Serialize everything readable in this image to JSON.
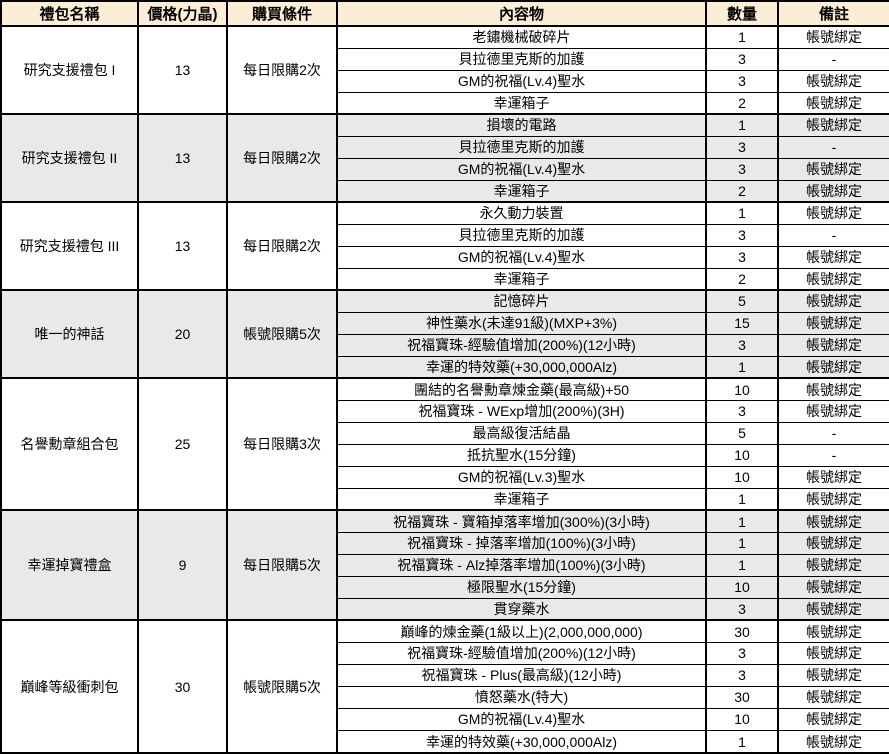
{
  "colors": {
    "header_bg": "#FBEED4",
    "shaded_row_bg": "#E9E9E9",
    "border": "#000000",
    "text": "#000000"
  },
  "table": {
    "columns": [
      "禮包名稱",
      "價格(力晶)",
      "購買條件",
      "內容物",
      "數量",
      "備註"
    ],
    "packages": [
      {
        "name": "研究支援禮包 I",
        "price": "13",
        "condition": "每日限購2次",
        "shaded": false,
        "items": [
          {
            "content": "老鏽機械破碎片",
            "qty": "1",
            "note": "帳號綁定"
          },
          {
            "content": "貝拉德里克斯的加護",
            "qty": "3",
            "note": "-"
          },
          {
            "content": "GM的祝福(Lv.4)聖水",
            "qty": "3",
            "note": "帳號綁定"
          },
          {
            "content": "幸運箱子",
            "qty": "2",
            "note": "帳號綁定"
          }
        ]
      },
      {
        "name": "研究支援禮包 II",
        "price": "13",
        "condition": "每日限購2次",
        "shaded": true,
        "items": [
          {
            "content": "損壞的電路",
            "qty": "1",
            "note": "帳號綁定"
          },
          {
            "content": "貝拉德里克斯的加護",
            "qty": "3",
            "note": "-"
          },
          {
            "content": "GM的祝福(Lv.4)聖水",
            "qty": "3",
            "note": "帳號綁定"
          },
          {
            "content": "幸運箱子",
            "qty": "2",
            "note": "帳號綁定"
          }
        ]
      },
      {
        "name": "研究支援禮包 III",
        "price": "13",
        "condition": "每日限購2次",
        "shaded": false,
        "items": [
          {
            "content": "永久動力裝置",
            "qty": "1",
            "note": "帳號綁定"
          },
          {
            "content": "貝拉德里克斯的加護",
            "qty": "3",
            "note": "-"
          },
          {
            "content": "GM的祝福(Lv.4)聖水",
            "qty": "3",
            "note": "帳號綁定"
          },
          {
            "content": "幸運箱子",
            "qty": "2",
            "note": "帳號綁定"
          }
        ]
      },
      {
        "name": "唯一的神話",
        "price": "20",
        "condition": "帳號限購5次",
        "shaded": true,
        "items": [
          {
            "content": "記憶碎片",
            "qty": "5",
            "note": "帳號綁定"
          },
          {
            "content": "神性藥水(未達91級)(MXP+3%)",
            "qty": "15",
            "note": "帳號綁定"
          },
          {
            "content": "祝福寶珠-經驗值增加(200%)(12小時)",
            "qty": "3",
            "note": "帳號綁定"
          },
          {
            "content": "幸運的特效藥(+30,000,000Alz)",
            "qty": "1",
            "note": "帳號綁定"
          }
        ]
      },
      {
        "name": "名譽勳章組合包",
        "price": "25",
        "condition": "每日限購3次",
        "shaded": false,
        "items": [
          {
            "content": "團結的名譽勳章煉金藥(最高級)+50",
            "qty": "10",
            "note": "帳號綁定"
          },
          {
            "content": "祝福寶珠 - WExp增加(200%)(3H)",
            "qty": "3",
            "note": "帳號綁定"
          },
          {
            "content": "最高級復活結晶",
            "qty": "5",
            "note": "-"
          },
          {
            "content": "抵抗聖水(15分鐘)",
            "qty": "10",
            "note": "-"
          },
          {
            "content": "GM的祝福(Lv.3)聖水",
            "qty": "10",
            "note": "帳號綁定"
          },
          {
            "content": "幸運箱子",
            "qty": "1",
            "note": "帳號綁定"
          }
        ]
      },
      {
        "name": "幸運掉寶禮盒",
        "price": "9",
        "condition": "每日限購5次",
        "shaded": true,
        "items": [
          {
            "content": "祝福寶珠 - 寶箱掉落率增加(300%)(3小時)",
            "qty": "1",
            "note": "帳號綁定"
          },
          {
            "content": "祝福寶珠 - 掉落率增加(100%)(3小時)",
            "qty": "1",
            "note": "帳號綁定"
          },
          {
            "content": "祝福寶珠 - Alz掉落率增加(100%)(3小時)",
            "qty": "1",
            "note": "帳號綁定"
          },
          {
            "content": "極限聖水(15分鐘)",
            "qty": "10",
            "note": "帳號綁定"
          },
          {
            "content": "貫穿藥水",
            "qty": "3",
            "note": "帳號綁定"
          }
        ]
      },
      {
        "name": "巔峰等級衝刺包",
        "price": "30",
        "condition": "帳號限購5次",
        "shaded": false,
        "items": [
          {
            "content": "巔峰的煉金藥(1級以上)(2,000,000,000)",
            "qty": "30",
            "note": "帳號綁定"
          },
          {
            "content": "祝福寶珠-經驗值增加(200%)(12小時)",
            "qty": "3",
            "note": "帳號綁定"
          },
          {
            "content": "祝福寶珠 - Plus(最高級)(12小時)",
            "qty": "3",
            "note": "帳號綁定"
          },
          {
            "content": "憤怒藥水(特大)",
            "qty": "30",
            "note": "帳號綁定"
          },
          {
            "content": "GM的祝福(Lv.4)聖水",
            "qty": "10",
            "note": "帳號綁定"
          },
          {
            "content": "幸運的特效藥(+30,000,000Alz)",
            "qty": "1",
            "note": "帳號綁定"
          }
        ]
      }
    ]
  }
}
